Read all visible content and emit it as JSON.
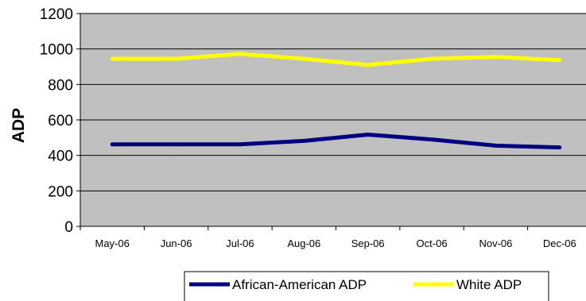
{
  "chart_data": {
    "type": "line",
    "categories": [
      "May-06",
      "Jun-06",
      "Jul-06",
      "Aug-06",
      "Sep-06",
      "Oct-06",
      "Nov-06",
      "Dec-06"
    ],
    "series": [
      {
        "name": "African-American ADP",
        "color": "#000080",
        "values": [
          462,
          462,
          462,
          482,
          517,
          490,
          455,
          445
        ]
      },
      {
        "name": "White ADP",
        "color": "#ffff00",
        "values": [
          945,
          945,
          972,
          945,
          910,
          945,
          955,
          937
        ]
      }
    ],
    "ylabel": "ADP",
    "xlabel": "",
    "ylim": [
      0,
      1200
    ],
    "yticks": [
      0,
      200,
      400,
      600,
      800,
      1000,
      1200
    ],
    "grid": true,
    "plot_background": "#c0c0c0",
    "legend_position": "bottom"
  }
}
